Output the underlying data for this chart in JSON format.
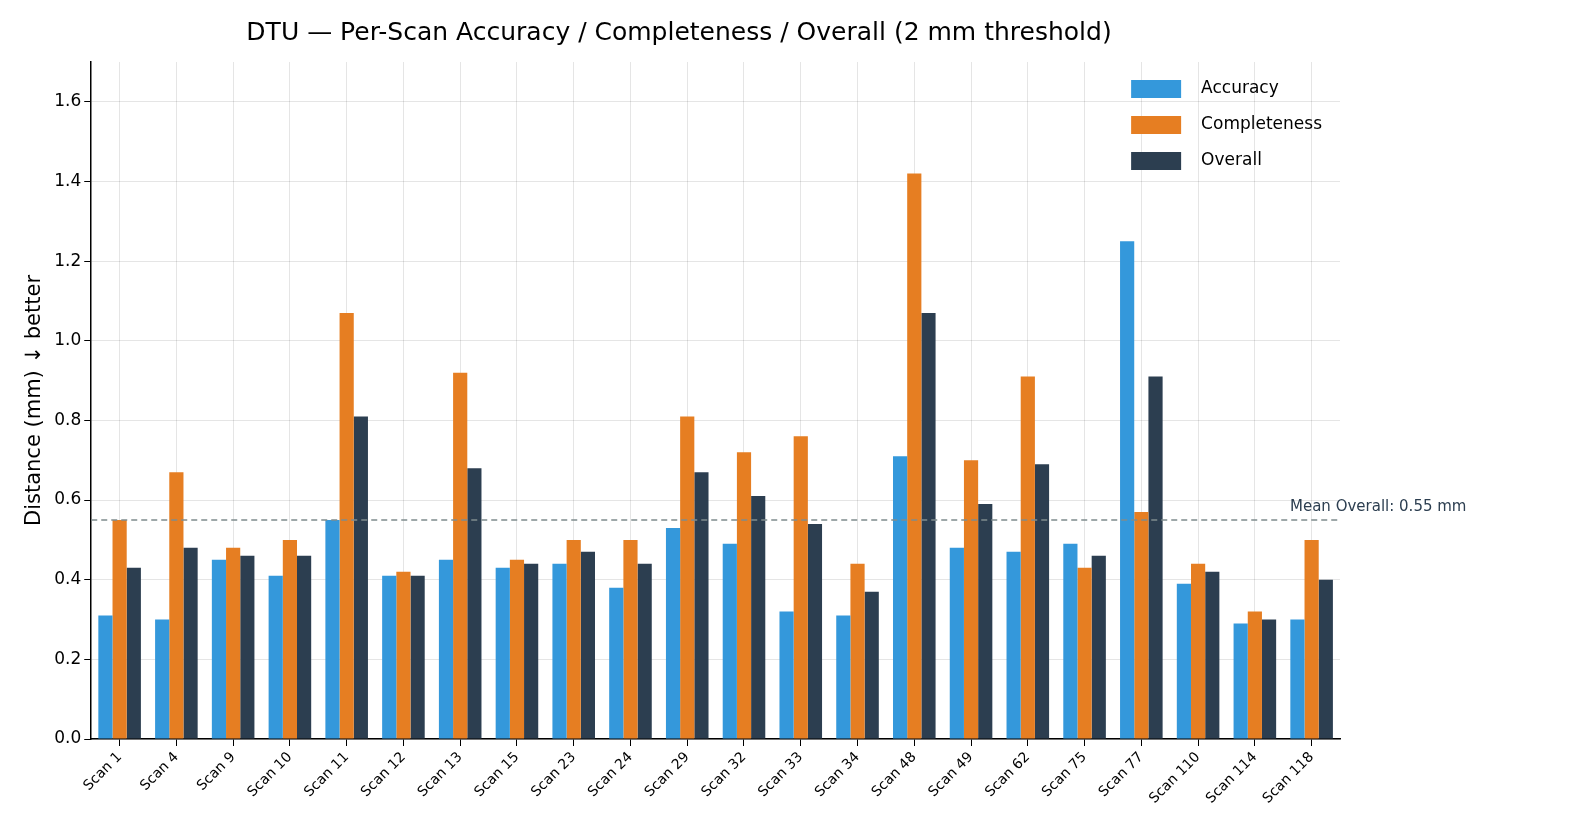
{
  "chart_data": {
    "type": "bar",
    "title": "DTU — Per-Scan Accuracy / Completeness / Overall (2 mm threshold)",
    "ylabel": "Distance (mm) ↓ better",
    "categories": [
      "Scan 1",
      "Scan 4",
      "Scan 9",
      "Scan 10",
      "Scan 11",
      "Scan 12",
      "Scan 13",
      "Scan 15",
      "Scan 23",
      "Scan 24",
      "Scan 29",
      "Scan 32",
      "Scan 33",
      "Scan 34",
      "Scan 48",
      "Scan 49",
      "Scan 62",
      "Scan 75",
      "Scan 77",
      "Scan 110",
      "Scan 114",
      "Scan 118"
    ],
    "series": [
      {
        "name": "Accuracy",
        "color": "#3498db",
        "values": [
          0.31,
          0.3,
          0.45,
          0.41,
          0.55,
          0.41,
          0.45,
          0.43,
          0.44,
          0.38,
          0.53,
          0.49,
          0.32,
          0.31,
          0.71,
          0.48,
          0.47,
          0.49,
          1.25,
          0.39,
          0.29,
          0.3
        ]
      },
      {
        "name": "Completeness",
        "color": "#e67e22",
        "values": [
          0.55,
          0.67,
          0.48,
          0.5,
          1.07,
          0.42,
          0.92,
          0.45,
          0.5,
          0.5,
          0.81,
          0.72,
          0.76,
          0.44,
          1.42,
          0.7,
          0.91,
          0.43,
          0.57,
          0.44,
          0.32,
          0.5
        ]
      },
      {
        "name": "Overall",
        "color": "#2c3e50",
        "values": [
          0.43,
          0.48,
          0.46,
          0.46,
          0.81,
          0.41,
          0.68,
          0.44,
          0.47,
          0.44,
          0.67,
          0.61,
          0.54,
          0.37,
          1.07,
          0.59,
          0.69,
          0.46,
          0.91,
          0.42,
          0.3,
          0.4
        ]
      }
    ],
    "ylim": [
      0,
      1.7
    ],
    "yticks": [
      {
        "value": 0,
        "label": "0.0"
      },
      0.2,
      0.4,
      0.6,
      0.8,
      {
        "value": 1,
        "label": "1.0"
      },
      1.2,
      1.4,
      1.6
    ],
    "grid": true,
    "legend": "top right",
    "ref_lines": [
      {
        "axis": "y",
        "value": 0.55,
        "label": "Mean Overall: 0.55 mm",
        "color": "#7f8c8d",
        "line_style": "dashed"
      }
    ]
  }
}
